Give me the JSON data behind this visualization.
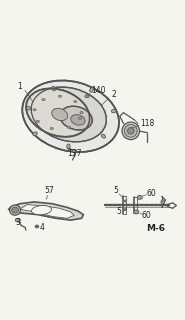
{
  "bg_color": "#f5f5f0",
  "line_color": "#555555",
  "label_color": "#222222",
  "page_label": "M-6",
  "fig_width": 1.85,
  "fig_height": 3.2,
  "dpi": 100
}
